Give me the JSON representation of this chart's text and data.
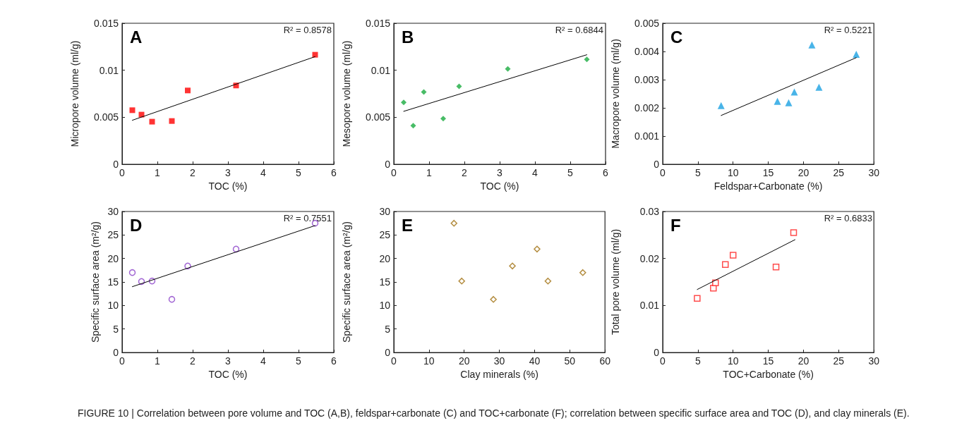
{
  "chart_data": [
    {
      "type": "scatter",
      "title": "A",
      "xlabel": "TOC (%)",
      "ylabel": "Micropore volume (ml/g)",
      "annotations": [
        "R² = 0.8578"
      ],
      "xlim": [
        0,
        6
      ],
      "xticks": [
        0,
        1,
        2,
        3,
        4,
        5,
        6
      ],
      "ylim": [
        0,
        0.015
      ],
      "yticks": [
        0,
        0.005,
        0.01,
        0.015
      ],
      "marker": "square",
      "series": [
        {
          "color": "#ff0000",
          "x": [
            0.29,
            0.55,
            0.85,
            1.41,
            1.86,
            3.23,
            5.47
          ],
          "values": [
            0.00575,
            0.00528,
            0.00453,
            0.0046,
            0.00785,
            0.00838,
            0.01165
          ]
        },
        {
          "type": "line",
          "color": "#000000",
          "marker": "none",
          "x": [
            0.29,
            5.47
          ],
          "values": [
            0.00468,
            0.01145
          ]
        }
      ]
    },
    {
      "type": "scatter",
      "title": "B",
      "xlabel": "TOC (%)",
      "ylabel": "Mesopore volume (ml/g)",
      "annotations": [
        "R² = 0.6844"
      ],
      "xlim": [
        0,
        6
      ],
      "xticks": [
        0,
        1,
        2,
        3,
        4,
        5,
        6
      ],
      "ylim": [
        0,
        0.015
      ],
      "yticks": [
        0,
        0.005,
        0.01,
        0.015
      ],
      "marker": "diamond",
      "series": [
        {
          "color": "#1aab40",
          "x": [
            0.28,
            0.55,
            0.85,
            1.4,
            1.85,
            3.23,
            5.47
          ],
          "values": [
            0.00658,
            0.0041,
            0.00768,
            0.00485,
            0.00828,
            0.01015,
            0.01115
          ]
        },
        {
          "type": "line",
          "color": "#000000",
          "marker": "none",
          "x": [
            0.28,
            5.47
          ],
          "values": [
            0.00563,
            0.01165
          ]
        }
      ]
    },
    {
      "type": "scatter",
      "title": "C",
      "xlabel": "Feldspar+Carbonate (%)",
      "ylabel": "Macropore volume (ml/g)",
      "annotations": [
        "R² = 0.5221"
      ],
      "xlim": [
        0,
        30
      ],
      "xticks": [
        0,
        5,
        10,
        15,
        20,
        25,
        30
      ],
      "ylim": [
        0,
        0.005
      ],
      "yticks": [
        0,
        0.001,
        0.002,
        0.003,
        0.004,
        0.005
      ],
      "marker": "triangle",
      "series": [
        {
          "color": "#1ba1e2",
          "x": [
            8.3,
            16.3,
            17.9,
            18.7,
            21.2,
            22.2,
            27.5
          ],
          "values": [
            0.00208,
            0.00223,
            0.00218,
            0.00256,
            0.00423,
            0.00273,
            0.0039
          ]
        },
        {
          "type": "line",
          "color": "#000000",
          "marker": "none",
          "x": [
            8.3,
            27.5
          ],
          "values": [
            0.00173,
            0.00378
          ]
        }
      ]
    },
    {
      "type": "scatter",
      "title": "D",
      "xlabel": "TOC (%)",
      "ylabel": "Specific surface area (m²/g)",
      "annotations": [
        "R² = 0.7551"
      ],
      "xlim": [
        0,
        6
      ],
      "xticks": [
        0,
        1,
        2,
        3,
        4,
        5,
        6
      ],
      "ylim": [
        0,
        30
      ],
      "yticks": [
        0,
        5,
        10,
        15,
        20,
        25,
        30
      ],
      "marker": "circle",
      "series": [
        {
          "color": "#8a3fc8",
          "x": [
            0.29,
            0.55,
            0.85,
            1.41,
            1.86,
            3.23,
            5.47
          ],
          "values": [
            17.0,
            15.1,
            15.2,
            11.3,
            18.4,
            22.0,
            27.5
          ]
        },
        {
          "type": "line",
          "color": "#000000",
          "marker": "none",
          "x": [
            0.29,
            5.47
          ],
          "values": [
            14.0,
            27.0
          ]
        }
      ]
    },
    {
      "type": "scatter",
      "title": "E",
      "xlabel": "Clay minerals (%)",
      "ylabel": "Specific surface area (m²/g)",
      "xlim": [
        0,
        60
      ],
      "xticks": [
        0,
        10,
        20,
        30,
        40,
        50,
        60
      ],
      "ylim": [
        0,
        30
      ],
      "yticks": [
        0,
        5,
        10,
        15,
        20,
        25,
        30
      ],
      "marker": "diamond",
      "series": [
        {
          "color": "#a07010",
          "x": [
            17.1,
            19.3,
            28.3,
            33.7,
            40.7,
            43.8,
            53.7
          ],
          "values": [
            27.5,
            15.2,
            11.3,
            18.4,
            22.0,
            15.2,
            17.0
          ]
        }
      ]
    },
    {
      "type": "scatter",
      "title": "F",
      "xlabel": "TOC+Carbonate (%)",
      "ylabel": "Total pore volume (ml/g)",
      "annotations": [
        "R² = 0.6833",
        "FIGURE 10 | Correlation between pore volume and TOC (A,B), feldspar+carbonate (C) and TOC+carbonate (F); correlation between specific surface area and TOC (D), and clay minerals (E)."
      ],
      "xlim": [
        0,
        30
      ],
      "xticks": [
        0,
        5,
        10,
        15,
        20,
        25,
        30
      ],
      "ylim": [
        0,
        0.03
      ],
      "yticks": [
        0,
        0.01,
        0.02,
        0.03
      ],
      "marker": "square",
      "series": [
        {
          "color": "#ff2020",
          "x": [
            4.9,
            7.2,
            7.5,
            8.9,
            10.0,
            16.1,
            18.6
          ],
          "values": [
            0.0115,
            0.0137,
            0.0148,
            0.0187,
            0.0207,
            0.0182,
            0.0255
          ]
        },
        {
          "type": "line",
          "color": "#000000",
          "marker": "none",
          "x": [
            4.9,
            18.8
          ],
          "values": [
            0.0134,
            0.024
          ]
        }
      ]
    }
  ]
}
